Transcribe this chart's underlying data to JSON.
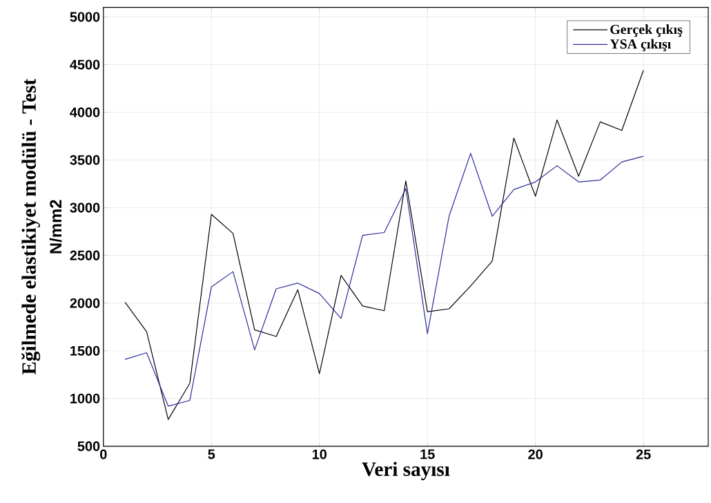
{
  "chart_data": {
    "type": "line",
    "xlabel": "Veri sayısı",
    "ylabel": "Eğilmede elastikiyet modülü - Test",
    "annotations": [
      "N/mm2"
    ],
    "x": [
      1,
      2,
      3,
      4,
      5,
      6,
      7,
      8,
      9,
      10,
      11,
      12,
      13,
      14,
      15,
      16,
      17,
      18,
      19,
      20,
      21,
      22,
      23,
      24,
      25
    ],
    "series": [
      {
        "name": "Gerçek çıkış",
        "color": "#000000",
        "values": [
          2010,
          1700,
          780,
          1160,
          2930,
          2730,
          1720,
          1650,
          2140,
          1260,
          2290,
          1970,
          1920,
          3280,
          1910,
          1940,
          2180,
          2440,
          3730,
          3120,
          3920,
          3330,
          3900,
          3810,
          4440
        ]
      },
      {
        "name": "YSA çıkışı",
        "color": "#2a2a9a",
        "values": [
          1410,
          1480,
          920,
          980,
          2170,
          2330,
          1510,
          2150,
          2210,
          2100,
          1840,
          2710,
          2740,
          3200,
          1680,
          2910,
          3570,
          2910,
          3190,
          3270,
          3440,
          3270,
          3290,
          3480,
          3540
        ]
      }
    ],
    "xlim": [
      0,
      28
    ],
    "ylim": [
      500,
      5100
    ],
    "xticks": [
      0,
      5,
      10,
      15,
      20,
      25
    ],
    "yticks": [
      500,
      1000,
      1500,
      2000,
      2500,
      3000,
      3500,
      4000,
      4500,
      5000
    ],
    "grid": true,
    "legend": "top right",
    "marker": "none",
    "line_style": "solid"
  }
}
